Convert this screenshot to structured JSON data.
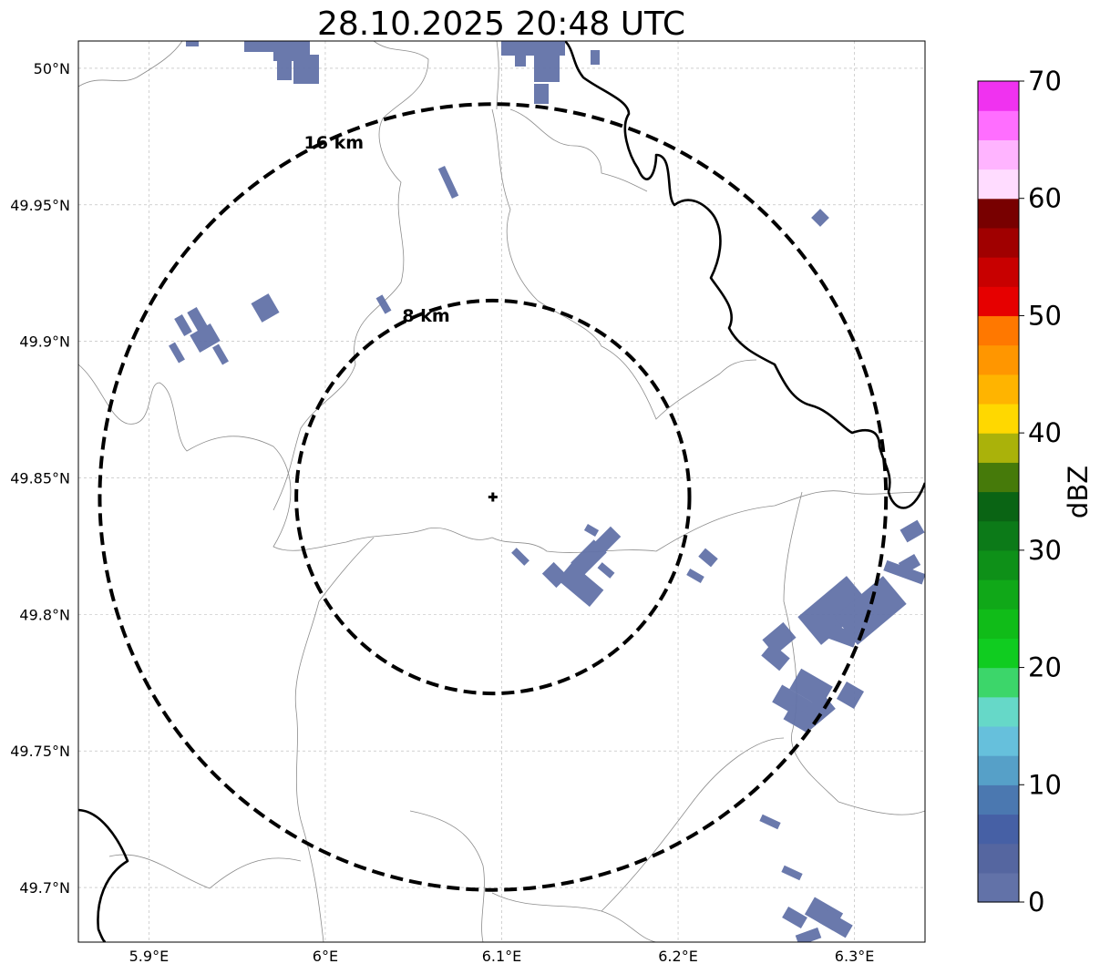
{
  "title": "28.10.2025 20:48 UTC",
  "map": {
    "lon_range": [
      5.86,
      6.34
    ],
    "lat_range": [
      49.68,
      50.01
    ],
    "lon_ticks": [
      {
        "value": 5.9,
        "label": "5.9°E"
      },
      {
        "value": 6.0,
        "label": "6°E"
      },
      {
        "value": 6.1,
        "label": "6.1°E"
      },
      {
        "value": 6.2,
        "label": "6.2°E"
      },
      {
        "value": 6.3,
        "label": "6.3°E"
      }
    ],
    "lat_ticks": [
      {
        "value": 50.0,
        "label": "50°N"
      },
      {
        "value": 49.95,
        "label": "49.95°N"
      },
      {
        "value": 49.9,
        "label": "49.9°N"
      },
      {
        "value": 49.85,
        "label": "49.85°N"
      },
      {
        "value": 49.8,
        "label": "49.8°N"
      },
      {
        "value": 49.75,
        "label": "49.75°N"
      },
      {
        "value": 49.7,
        "label": "49.7°N"
      }
    ],
    "grid": true,
    "radar_site": {
      "lon": 6.095,
      "lat": 49.843
    },
    "range_rings": [
      {
        "radius_km": 8,
        "label": "8 km"
      },
      {
        "radius_km": 16,
        "label": "16 km"
      }
    ],
    "echo_color": "#6272a8"
  },
  "colorbar": {
    "label": "dBZ",
    "ticks": [
      "0",
      "10",
      "20",
      "30",
      "40",
      "50",
      "60",
      "70"
    ],
    "colors": [
      "#6272a8",
      "#5566a0",
      "#4660a5",
      "#4b78b0",
      "#56a0c8",
      "#66c0dc",
      "#66d8c8",
      "#3cd66a",
      "#10cc20",
      "#10bc18",
      "#10a818",
      "#0e9018",
      "#0c7a18",
      "#0a6414",
      "#467a0a",
      "#aab20a",
      "#ffd800",
      "#ffb400",
      "#ff9600",
      "#ff7800",
      "#e60000",
      "#c80000",
      "#a00000",
      "#780000",
      "#ffdcff",
      "#ffb4ff",
      "#ff6eff",
      "#f032f0"
    ]
  }
}
